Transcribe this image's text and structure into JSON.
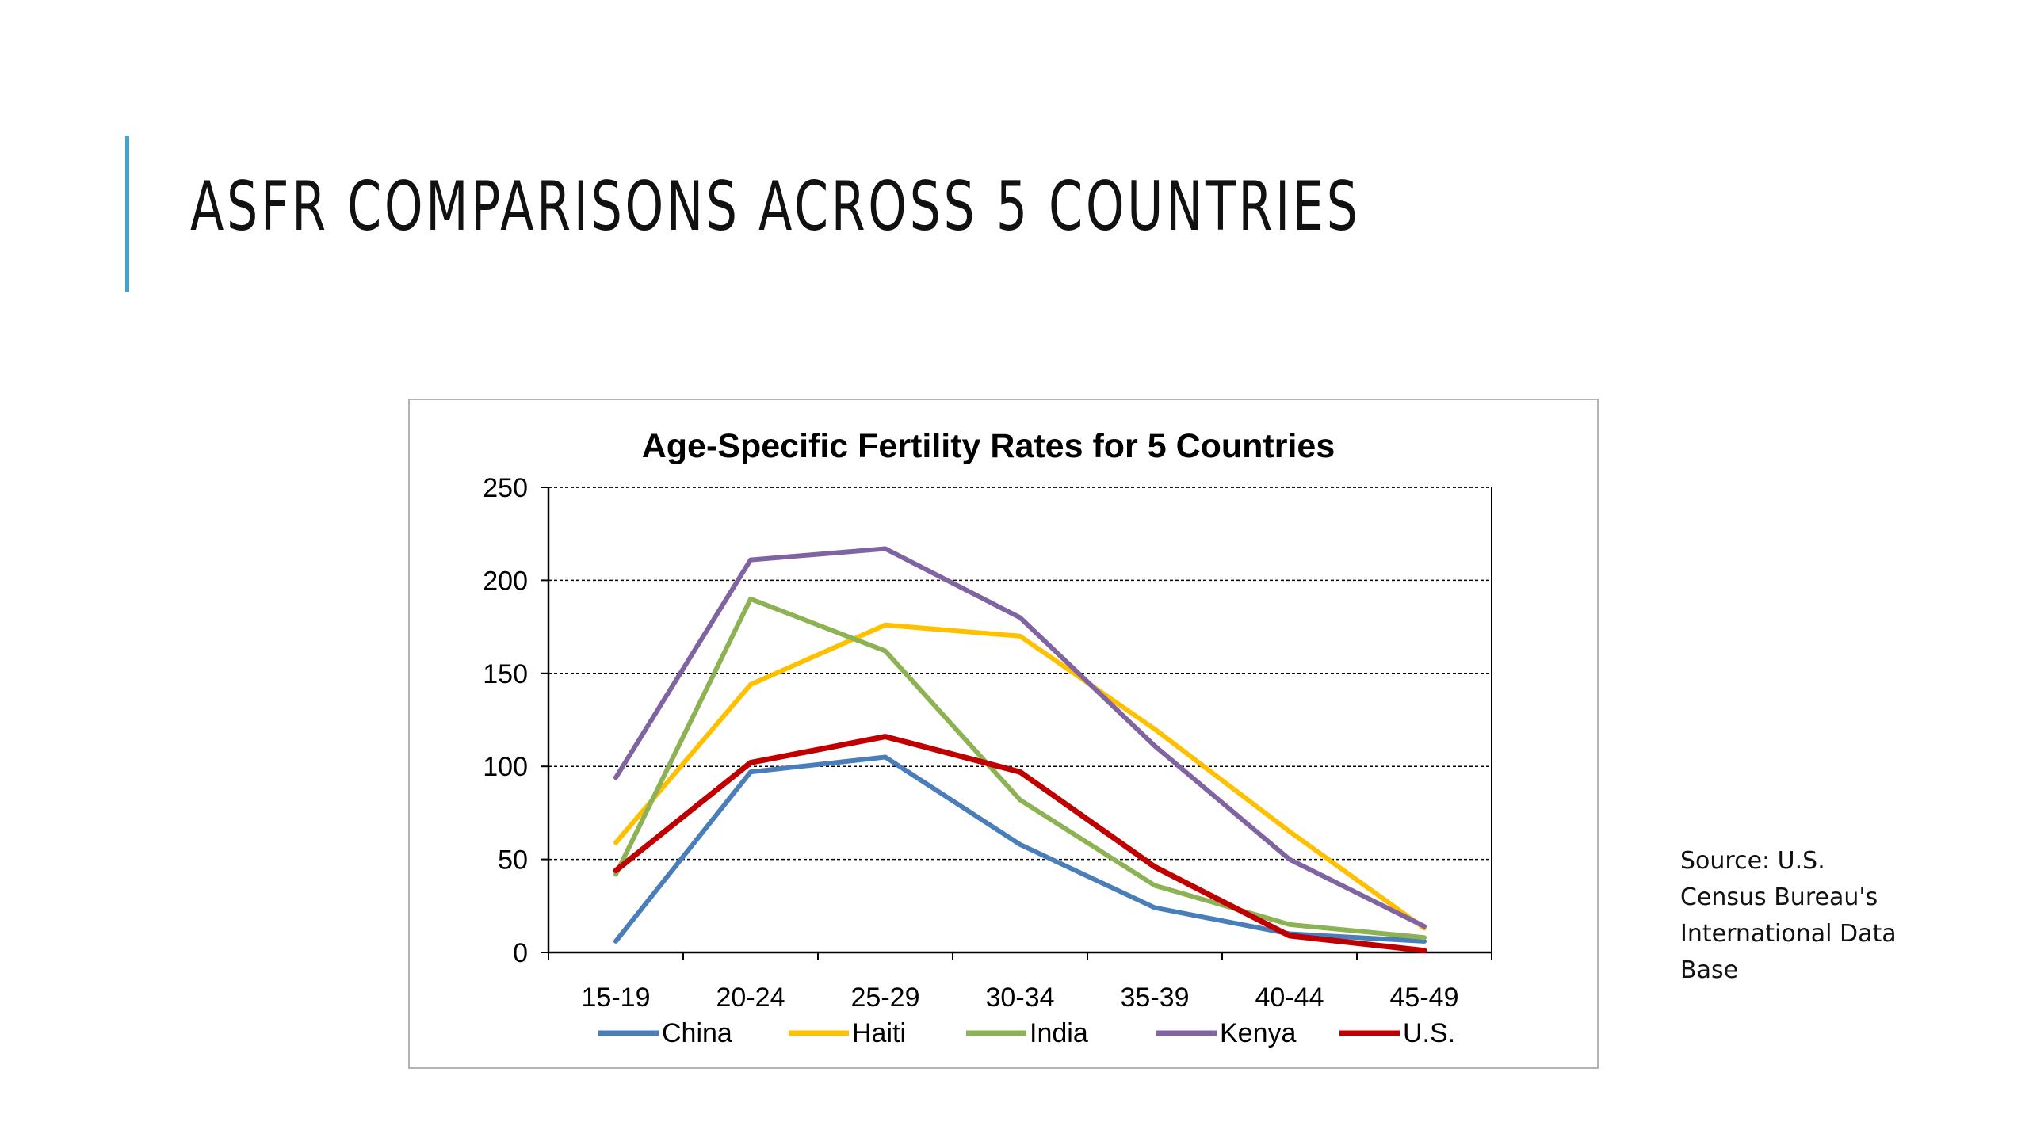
{
  "slide": {
    "title": "ASFR COMPARISONS ACROSS 5 COUNTRIES",
    "accent_color": "#3fa6d2",
    "source_note": "Source: U.S.\nCensus Bureau's\nInternational Data\nBase"
  },
  "chart_data": {
    "type": "line",
    "title": "Age-Specific Fertility  Rates for 5 Countries",
    "xlabel": "",
    "ylabel": "",
    "categories": [
      "15-19",
      "20-24",
      "25-29",
      "30-34",
      "35-39",
      "40-44",
      "45-49"
    ],
    "ylim": [
      0,
      250
    ],
    "yticks": [
      0,
      50,
      100,
      150,
      200,
      250
    ],
    "grid": "horizontal dashed",
    "legend_position": "bottom",
    "series": [
      {
        "name": "China",
        "color": "#4a7ebb",
        "values": [
          6,
          97,
          105,
          58,
          24,
          10,
          6
        ]
      },
      {
        "name": "Haiti",
        "color": "#ffc000",
        "values": [
          59,
          144,
          176,
          170,
          120,
          65,
          13
        ]
      },
      {
        "name": "India",
        "color": "#8db254",
        "values": [
          42,
          190,
          162,
          82,
          36,
          15,
          8
        ]
      },
      {
        "name": "Kenya",
        "color": "#8064a2",
        "values": [
          94,
          211,
          217,
          180,
          111,
          50,
          14
        ]
      },
      {
        "name": "U.S.",
        "color": "#c00000",
        "values": [
          44,
          102,
          116,
          97,
          46,
          9,
          1
        ]
      }
    ]
  }
}
